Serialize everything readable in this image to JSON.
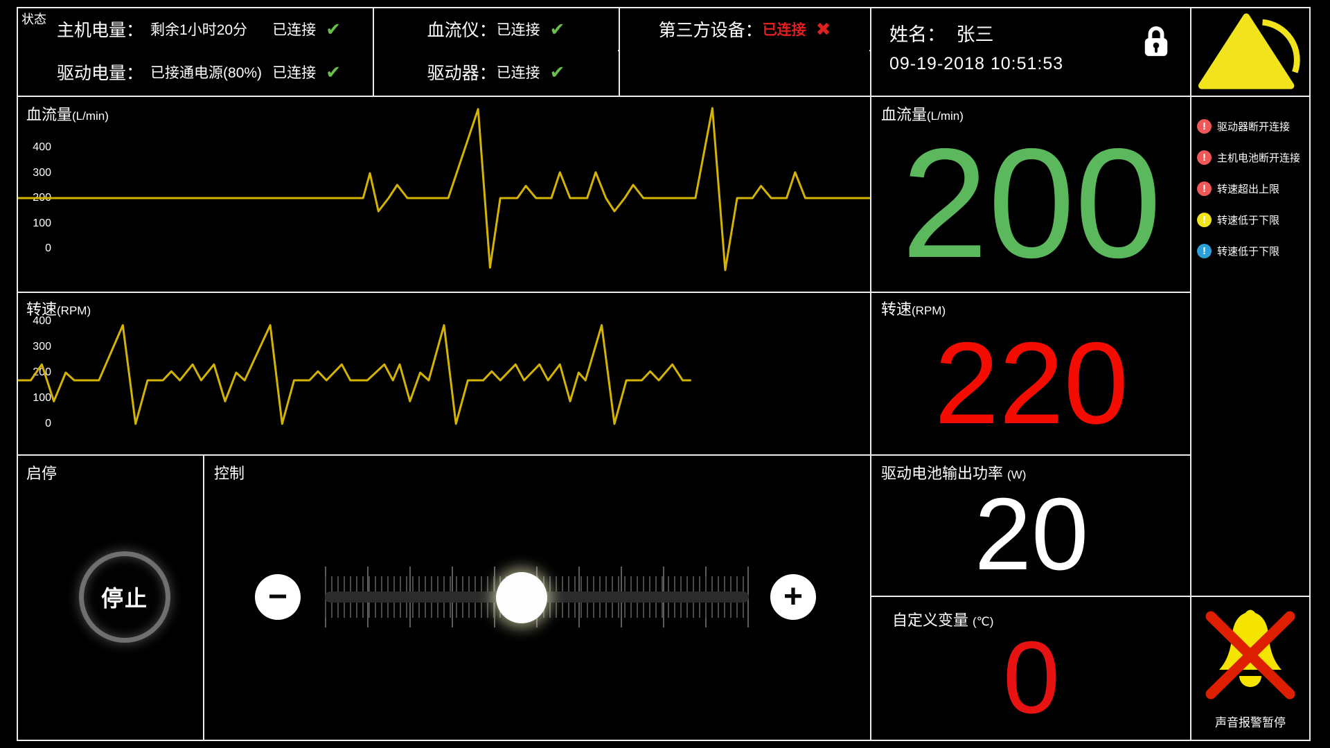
{
  "status_bar": {
    "label": "状态",
    "host": {
      "label": "主机电量：",
      "value": "剩余1小时20分",
      "conn": "已连接",
      "mark": "✔"
    },
    "drive": {
      "label": "驱动电量：",
      "value": "已接通电源(80%)",
      "conn": "已连接",
      "mark": "✔"
    },
    "flow_meter": {
      "label": "血流仪：",
      "conn": "已连接",
      "mark": "✔"
    },
    "driver": {
      "label": "驱动器：",
      "conn": "已连接",
      "mark": "✔"
    },
    "third_party": {
      "label": "第三方设备：",
      "conn": "已连接",
      "mark": "✖"
    },
    "patient": {
      "label": "姓名：",
      "name": "张三",
      "datetime": "09-19-2018 10:51:53"
    }
  },
  "readouts": {
    "flow": {
      "title": "血流量",
      "unit": "(L/min)",
      "value": "200",
      "color": "#5cb85c"
    },
    "rpm": {
      "title": "转速",
      "unit": "(RPM)",
      "value": "220",
      "color": "#f50c00"
    },
    "power": {
      "title": "驱动电池输出功率",
      "unit": "(W)",
      "value": "20",
      "color": "#ffffff"
    },
    "custom": {
      "title": "自定义变量",
      "unit": "(℃)",
      "value": "0",
      "color": "#e81212"
    }
  },
  "alerts": [
    {
      "text": "驱动器断开连接",
      "mark": "!",
      "color": "#ef5858"
    },
    {
      "text": "主机电池断开连接",
      "mark": "!",
      "color": "#ef5858"
    },
    {
      "text": "转速超出上限",
      "mark": "!",
      "color": "#ef5858"
    },
    {
      "text": "转速低于下限",
      "mark": "!",
      "color": "#f0e41f"
    },
    {
      "text": "转速低于下限",
      "mark": "!",
      "color": "#2a9fd8"
    }
  ],
  "controls": {
    "start_stop_label": "启停",
    "stop_label": "停止",
    "control_label": "控制",
    "minus": "−",
    "plus": "+",
    "slider_percent": 46.4
  },
  "mute_label": "声音报警暂停",
  "colors": {
    "trace": "#d4b400",
    "check_ok": "#6abf4b",
    "error": "#e02020"
  },
  "chart_data": [
    {
      "type": "line",
      "title": "血流量",
      "unit": "(L/min)",
      "ylabel": "L/min",
      "yticks": [
        400,
        300,
        200,
        100,
        0
      ],
      "ylim": [
        -100,
        580
      ],
      "line_color": "#d4b400",
      "points": [
        [
          0,
          200
        ],
        [
          40.5,
          200
        ],
        [
          41.3,
          298
        ],
        [
          42.3,
          148
        ],
        [
          43.5,
          200
        ],
        [
          44.5,
          252
        ],
        [
          45.7,
          200
        ],
        [
          48.5,
          200
        ],
        [
          50.5,
          200
        ],
        [
          54.0,
          552
        ],
        [
          55.4,
          -75
        ],
        [
          56.6,
          200
        ],
        [
          58.6,
          200
        ],
        [
          59.6,
          248
        ],
        [
          60.8,
          200
        ],
        [
          62.6,
          200
        ],
        [
          63.6,
          302
        ],
        [
          64.8,
          200
        ],
        [
          66.8,
          200
        ],
        [
          67.8,
          302
        ],
        [
          69.0,
          200
        ],
        [
          70.0,
          148
        ],
        [
          71.2,
          200
        ],
        [
          72.2,
          252
        ],
        [
          73.4,
          200
        ],
        [
          76.0,
          200
        ],
        [
          79.5,
          200
        ],
        [
          81.5,
          556
        ],
        [
          83.0,
          -85
        ],
        [
          84.4,
          200
        ],
        [
          86.2,
          200
        ],
        [
          87.2,
          248
        ],
        [
          88.4,
          200
        ],
        [
          90.2,
          200
        ],
        [
          91.2,
          302
        ],
        [
          92.4,
          200
        ],
        [
          94.0,
          200
        ],
        [
          100,
          200
        ]
      ]
    },
    {
      "type": "line",
      "title": "转速",
      "unit": "(RPM)",
      "ylabel": "RPM",
      "yticks": [
        400,
        300,
        200,
        100,
        0
      ],
      "ylim": [
        -30,
        430
      ],
      "line_color": "#d4b400",
      "points": [
        [
          0,
          170
        ],
        [
          1.5,
          170
        ],
        [
          2.8,
          232
        ],
        [
          4.2,
          88
        ],
        [
          5.6,
          200
        ],
        [
          6.6,
          170
        ],
        [
          9.5,
          170
        ],
        [
          12.3,
          385
        ],
        [
          13.8,
          0
        ],
        [
          15.2,
          170
        ],
        [
          17.0,
          170
        ],
        [
          18.0,
          205
        ],
        [
          19.0,
          170
        ],
        [
          20.5,
          232
        ],
        [
          21.5,
          170
        ],
        [
          23.0,
          232
        ],
        [
          24.3,
          88
        ],
        [
          25.6,
          200
        ],
        [
          26.6,
          170
        ],
        [
          29.6,
          385
        ],
        [
          31.0,
          0
        ],
        [
          32.4,
          170
        ],
        [
          34.2,
          170
        ],
        [
          35.2,
          205
        ],
        [
          36.2,
          170
        ],
        [
          38.0,
          232
        ],
        [
          39.0,
          170
        ],
        [
          41.0,
          170
        ],
        [
          43.0,
          232
        ],
        [
          44.0,
          170
        ],
        [
          44.8,
          232
        ],
        [
          46.0,
          88
        ],
        [
          47.2,
          200
        ],
        [
          48.2,
          170
        ],
        [
          50.0,
          385
        ],
        [
          51.4,
          0
        ],
        [
          52.8,
          170
        ],
        [
          54.6,
          170
        ],
        [
          55.6,
          205
        ],
        [
          56.6,
          170
        ],
        [
          58.4,
          232
        ],
        [
          59.4,
          170
        ],
        [
          61.2,
          232
        ],
        [
          62.2,
          170
        ],
        [
          63.6,
          232
        ],
        [
          64.8,
          88
        ],
        [
          65.8,
          200
        ],
        [
          66.6,
          170
        ],
        [
          68.5,
          385
        ],
        [
          70.0,
          0
        ],
        [
          71.4,
          170
        ],
        [
          73.2,
          170
        ],
        [
          74.2,
          205
        ],
        [
          75.2,
          170
        ],
        [
          76.8,
          232
        ],
        [
          78.0,
          170
        ],
        [
          79.0,
          170
        ]
      ]
    }
  ]
}
